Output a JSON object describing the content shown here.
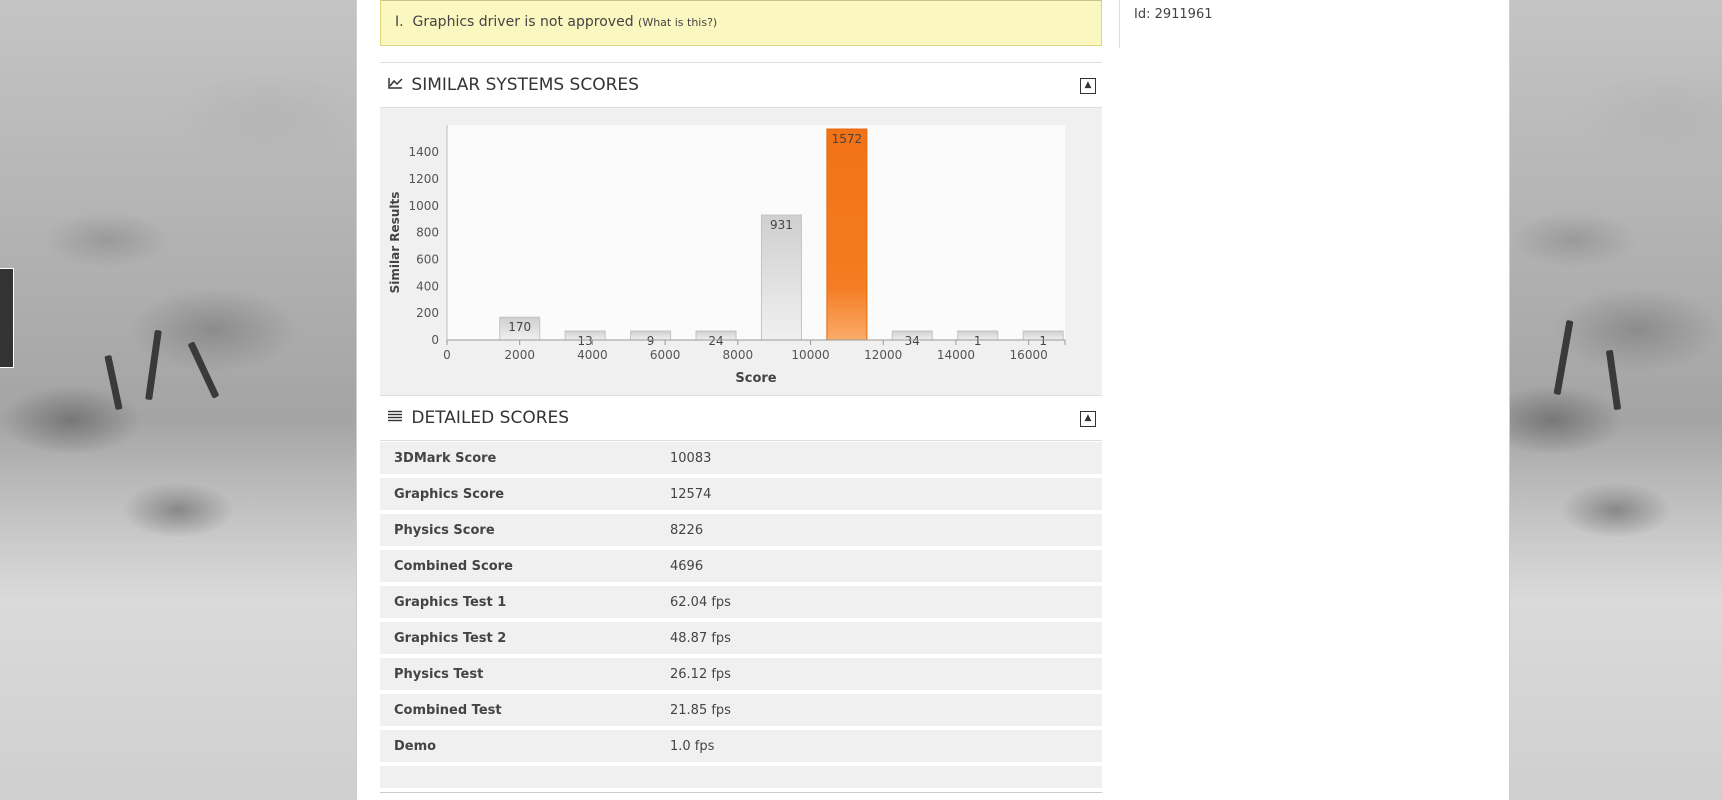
{
  "warning": {
    "number": "I.",
    "text": "Graphics driver is not approved",
    "link": "(What is this?)"
  },
  "side": {
    "id_text": "Id: 2911961"
  },
  "similar": {
    "title": "SIMILAR SYSTEMS SCORES",
    "icon": "line-chart-icon",
    "collapse_icon": "collapse-icon"
  },
  "detailed": {
    "title": "DETAILED SCORES",
    "icon": "list-icon",
    "collapse_icon": "collapse-icon",
    "rows": [
      {
        "label": "3DMark Score",
        "value": "10083"
      },
      {
        "label": "Graphics Score",
        "value": "12574"
      },
      {
        "label": "Physics Score",
        "value": "8226"
      },
      {
        "label": "Combined Score",
        "value": "4696"
      },
      {
        "label": "Graphics Test 1",
        "value": "62.04 fps"
      },
      {
        "label": "Graphics Test 2",
        "value": "48.87 fps"
      },
      {
        "label": "Physics Test",
        "value": "26.12 fps"
      },
      {
        "label": "Combined Test",
        "value": "21.85 fps"
      },
      {
        "label": "Demo",
        "value": "1.0 fps"
      }
    ]
  },
  "chart_data": {
    "type": "bar",
    "xlabel": "Score",
    "ylabel": "Similar Results",
    "x": [
      2000,
      3800,
      5600,
      7400,
      9200,
      11000,
      12800,
      14600,
      16400
    ],
    "values": [
      170,
      13,
      9,
      24,
      931,
      1572,
      34,
      1,
      1
    ],
    "highlight_index": 5,
    "xlim": [
      0,
      17000
    ],
    "ylim": [
      0,
      1572
    ],
    "xticks": [
      0,
      2000,
      4000,
      6000,
      8000,
      10000,
      12000,
      14000,
      16000
    ],
    "yticks": [
      0,
      200,
      400,
      600,
      800,
      1000,
      1200,
      1400
    ],
    "colors": {
      "bar": "#d4d4d4",
      "highlight": "#f47a20"
    }
  }
}
